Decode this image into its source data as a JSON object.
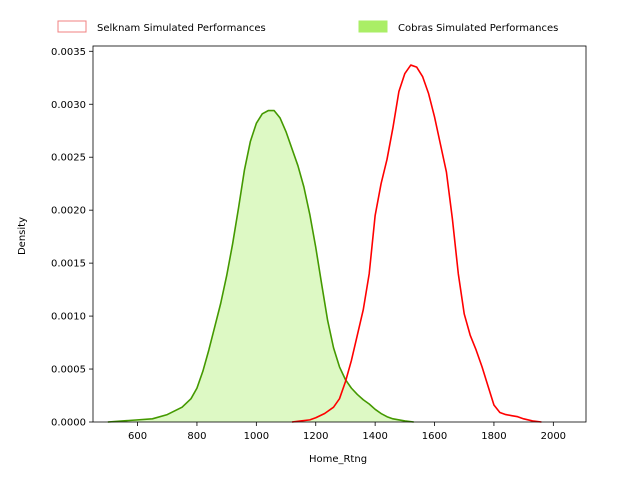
{
  "chart_data": {
    "type": "area",
    "xlabel": "Home_Rtng",
    "ylabel": "Density",
    "xlim": [
      450,
      2110
    ],
    "ylim": [
      0,
      0.00355
    ],
    "x_ticks": [
      600,
      800,
      1000,
      1200,
      1400,
      1600,
      1800,
      2000
    ],
    "x_tick_labels": [
      "600",
      "800",
      "1000",
      "1200",
      "1400",
      "1600",
      "1800",
      "2000"
    ],
    "y_ticks": [
      0,
      0.0005,
      0.001,
      0.0015,
      0.002,
      0.0025,
      0.003,
      0.0035
    ],
    "y_tick_labels": [
      "0.0000",
      "0.0005",
      "0.0010",
      "0.0015",
      "0.0020",
      "0.0025",
      "0.0030",
      "0.0035"
    ],
    "grid": false,
    "legend_position": "top, above plot",
    "series": [
      {
        "name": "Selknam Simulated Performances",
        "color": "#ff0000",
        "legend_color": "#f08080",
        "filled": false,
        "points": [
          [
            1120,
            0.0
          ],
          [
            1150,
            1e-05
          ],
          [
            1180,
            2e-05
          ],
          [
            1200,
            4e-05
          ],
          [
            1230,
            8e-05
          ],
          [
            1260,
            0.00014
          ],
          [
            1280,
            0.00022
          ],
          [
            1300,
            0.00038
          ],
          [
            1320,
            0.00058
          ],
          [
            1340,
            0.00082
          ],
          [
            1360,
            0.00106
          ],
          [
            1380,
            0.0014
          ],
          [
            1400,
            0.00195
          ],
          [
            1420,
            0.00225
          ],
          [
            1440,
            0.00248
          ],
          [
            1460,
            0.00278
          ],
          [
            1480,
            0.00312
          ],
          [
            1500,
            0.00329
          ],
          [
            1520,
            0.00337
          ],
          [
            1540,
            0.00335
          ],
          [
            1560,
            0.00326
          ],
          [
            1580,
            0.0031
          ],
          [
            1600,
            0.00288
          ],
          [
            1620,
            0.00262
          ],
          [
            1640,
            0.00236
          ],
          [
            1660,
            0.00192
          ],
          [
            1680,
            0.0014
          ],
          [
            1700,
            0.00102
          ],
          [
            1720,
            0.00082
          ],
          [
            1740,
            0.00068
          ],
          [
            1760,
            0.00052
          ],
          [
            1780,
            0.00034
          ],
          [
            1800,
            0.00016
          ],
          [
            1820,
            9e-05
          ],
          [
            1840,
            7e-05
          ],
          [
            1860,
            6e-05
          ],
          [
            1880,
            5e-05
          ],
          [
            1900,
            3e-05
          ],
          [
            1930,
            1e-05
          ],
          [
            1960,
            0.0
          ]
        ]
      },
      {
        "name": "Cobras Simulated Performances",
        "color": "#449900",
        "legend_color": "#aaee66",
        "fill_color": "#ddf9c4",
        "filled": true,
        "points": [
          [
            500,
            0.0
          ],
          [
            550,
            1e-05
          ],
          [
            600,
            2e-05
          ],
          [
            650,
            3e-05
          ],
          [
            700,
            7e-05
          ],
          [
            750,
            0.00014
          ],
          [
            780,
            0.00022
          ],
          [
            800,
            0.00032
          ],
          [
            820,
            0.00048
          ],
          [
            840,
            0.00068
          ],
          [
            860,
            0.0009
          ],
          [
            880,
            0.00112
          ],
          [
            900,
            0.00138
          ],
          [
            920,
            0.00168
          ],
          [
            940,
            0.00202
          ],
          [
            960,
            0.00238
          ],
          [
            980,
            0.00265
          ],
          [
            1000,
            0.00282
          ],
          [
            1020,
            0.00291
          ],
          [
            1040,
            0.00294
          ],
          [
            1060,
            0.00294
          ],
          [
            1080,
            0.00287
          ],
          [
            1100,
            0.00274
          ],
          [
            1120,
            0.00258
          ],
          [
            1140,
            0.00242
          ],
          [
            1160,
            0.00222
          ],
          [
            1180,
            0.00196
          ],
          [
            1200,
            0.00165
          ],
          [
            1220,
            0.0013
          ],
          [
            1240,
            0.00096
          ],
          [
            1260,
            0.0007
          ],
          [
            1280,
            0.00052
          ],
          [
            1300,
            0.0004
          ],
          [
            1320,
            0.00032
          ],
          [
            1340,
            0.00026
          ],
          [
            1360,
            0.00021
          ],
          [
            1380,
            0.00017
          ],
          [
            1400,
            0.00012
          ],
          [
            1420,
            8e-05
          ],
          [
            1440,
            5e-05
          ],
          [
            1460,
            3e-05
          ],
          [
            1500,
            1e-05
          ],
          [
            1530,
            0.0
          ]
        ]
      }
    ]
  }
}
